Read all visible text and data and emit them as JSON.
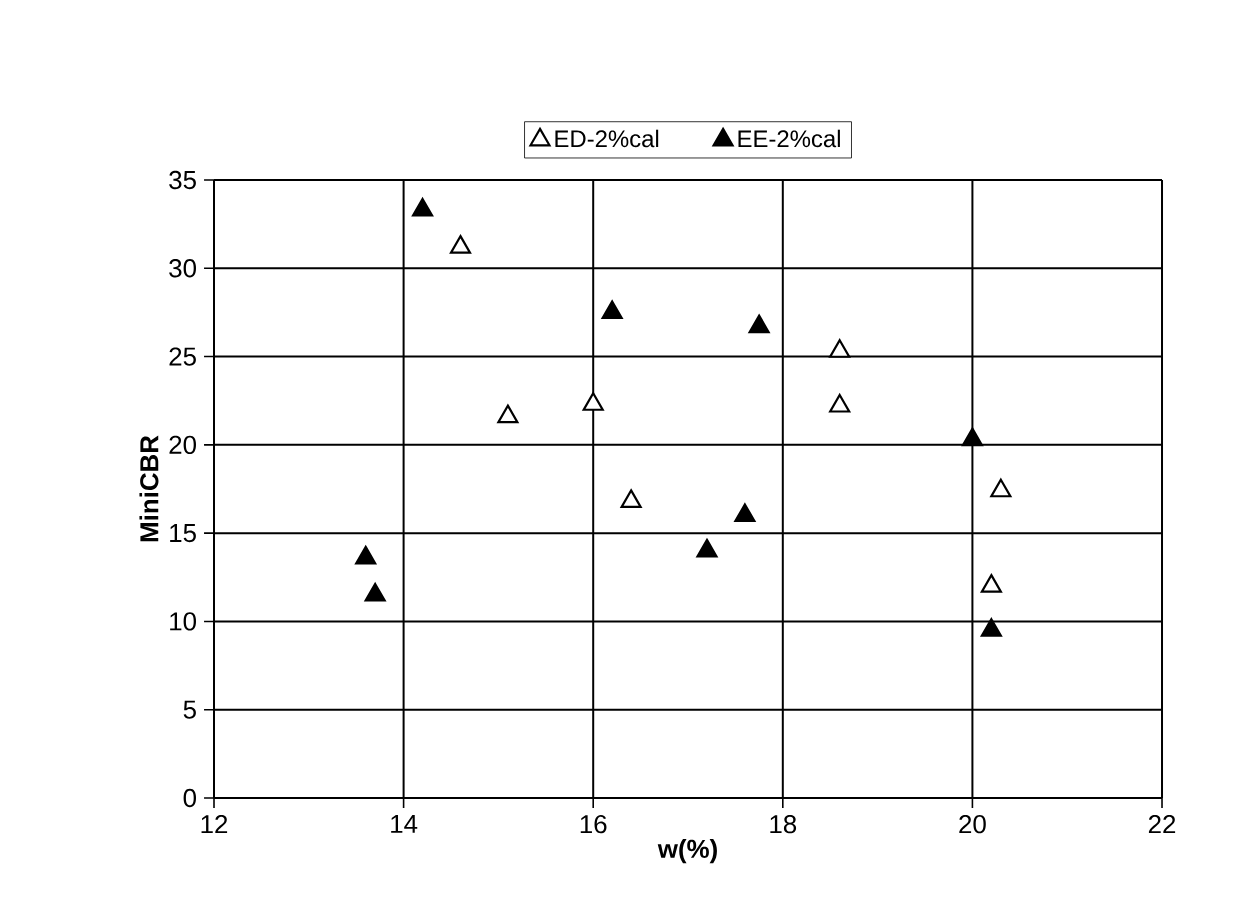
{
  "chart_data": {
    "type": "scatter",
    "xlabel": "w(%)",
    "ylabel": "MiniCBR",
    "xlim": [
      12,
      22
    ],
    "xticks": [
      12,
      14,
      16,
      18,
      20,
      22
    ],
    "ylim": [
      0,
      35
    ],
    "yticks": [
      0,
      5,
      10,
      15,
      20,
      25,
      30,
      35
    ],
    "grid": true,
    "legend": "top",
    "marker": "triangle",
    "series": [
      {
        "name": "ED-2%cal",
        "color": "#ffffff",
        "x": [
          14.6,
          15.1,
          16.0,
          16.4,
          18.6,
          18.6,
          20.3,
          20.2
        ],
        "values": [
          31.2,
          21.6,
          22.3,
          16.8,
          25.3,
          22.2,
          17.4,
          12.0
        ]
      },
      {
        "name": "EE-2%cal",
        "color": "#000000",
        "x": [
          13.6,
          13.7,
          14.2,
          16.2,
          17.2,
          17.6,
          17.75,
          20.0,
          20.2
        ],
        "values": [
          13.6,
          11.5,
          33.3,
          27.5,
          14.0,
          16.0,
          26.7,
          20.3,
          9.5
        ]
      }
    ]
  }
}
